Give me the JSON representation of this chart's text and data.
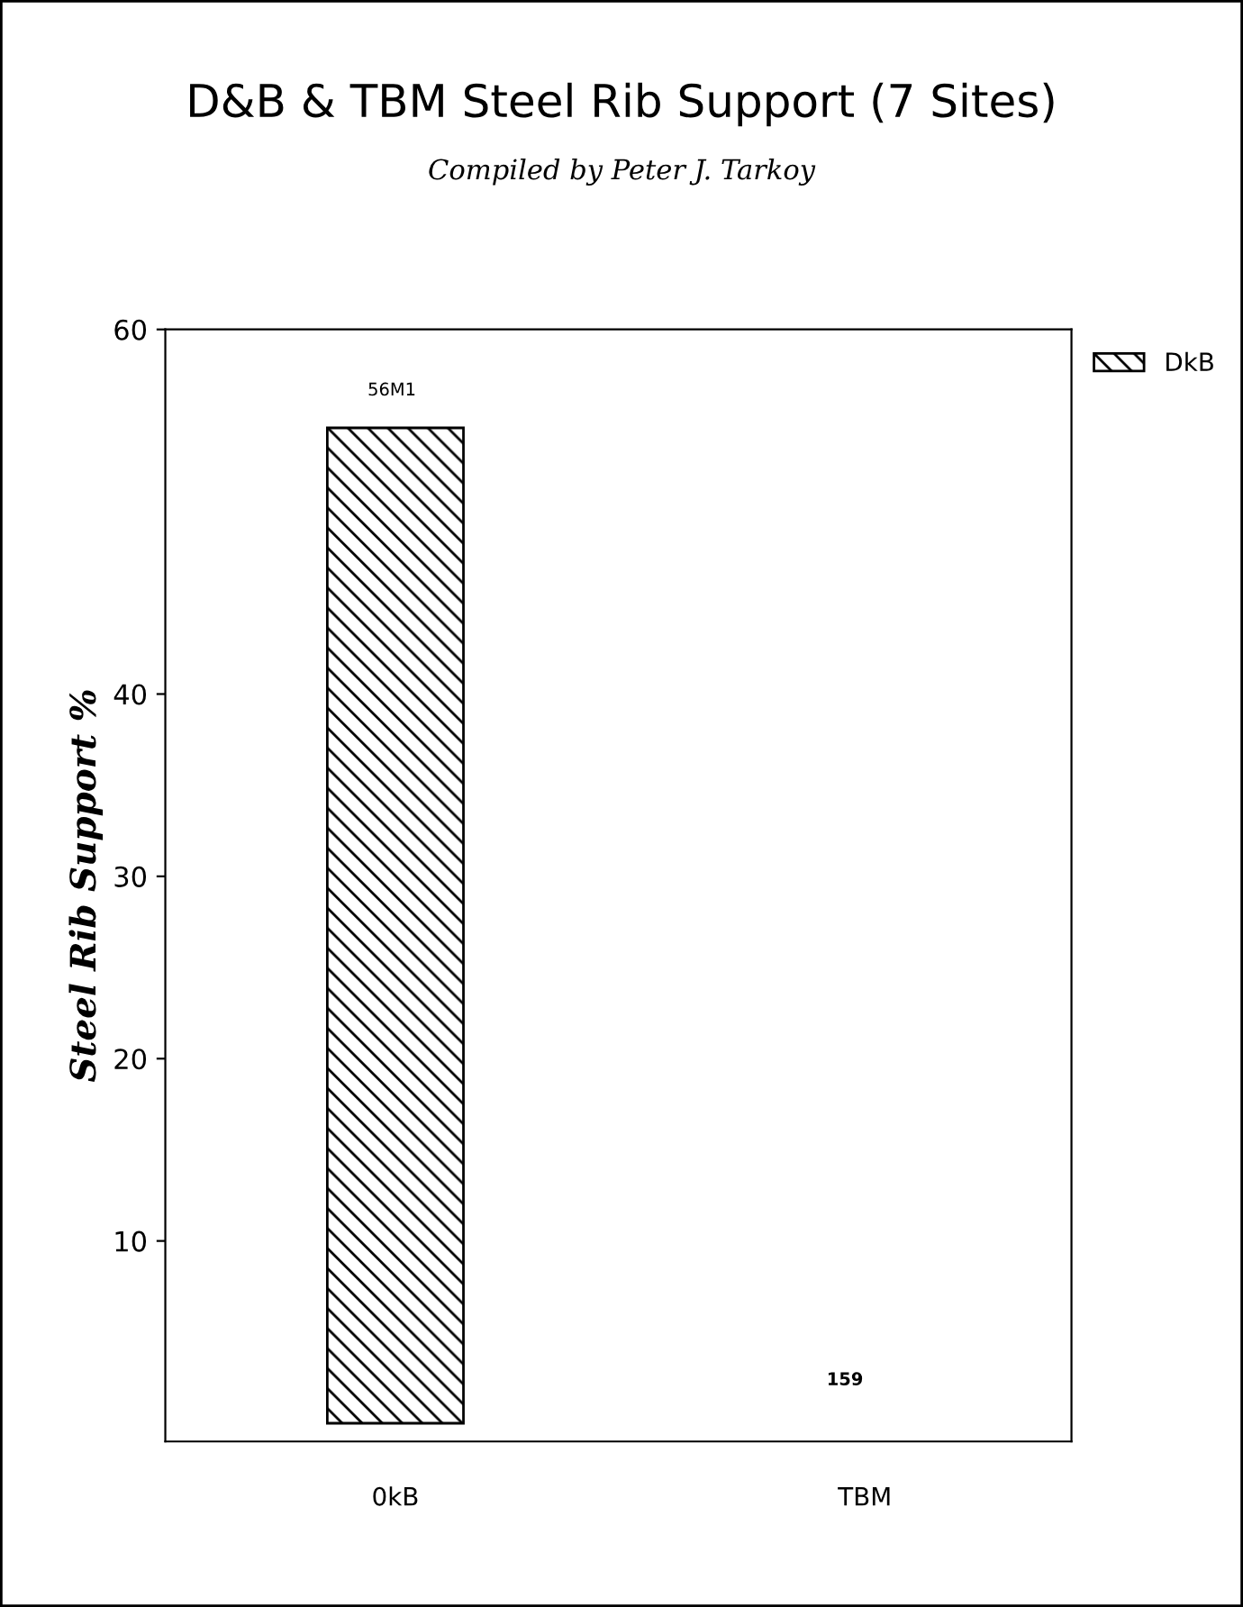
{
  "chart_data": {
    "type": "bar",
    "title": "D&B & TBM Steel Rib Support (7 Sites)",
    "subtitle": "Compiled by Peter J. Tarkoy",
    "ylabel": "Steel Rib Support %",
    "categories": [
      "0kB",
      "TBM"
    ],
    "series": [
      {
        "name": "DkB",
        "color": "#000000",
        "values": [
          54.6,
          null
        ]
      }
    ],
    "annotations": [
      "56M1",
      "159"
    ],
    "ylim": [
      -1,
      60
    ],
    "yticks": [
      10,
      20,
      30,
      40,
      60
    ],
    "grid": false,
    "legend": "top right"
  }
}
